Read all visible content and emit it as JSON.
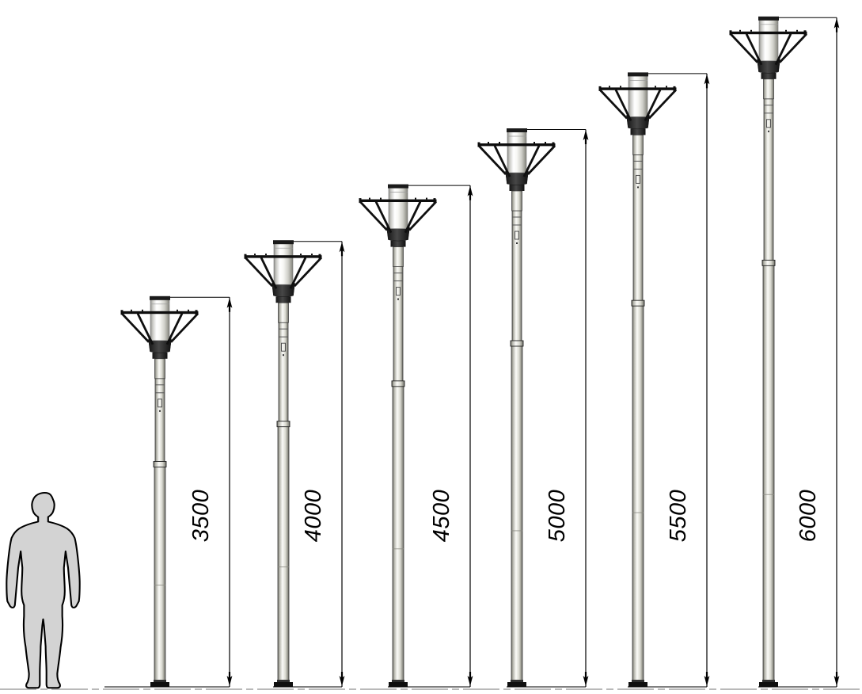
{
  "diagram": {
    "lamps": [
      {
        "label": "3500",
        "height_mm": 3500
      },
      {
        "label": "4000",
        "height_mm": 4000
      },
      {
        "label": "4500",
        "height_mm": 4500
      },
      {
        "label": "5000",
        "height_mm": 5000
      },
      {
        "label": "5500",
        "height_mm": 5500
      },
      {
        "label": "6000",
        "height_mm": 6000
      }
    ],
    "colors": {
      "outline": "#000000",
      "silhouette_fill": "#d3d3d3",
      "ground_line": "#b9b9b9",
      "lantern_dark": "#2b2b2b",
      "pole_metal_light": "#fbfbf8",
      "pole_metal_dark": "#6f6f66"
    }
  }
}
